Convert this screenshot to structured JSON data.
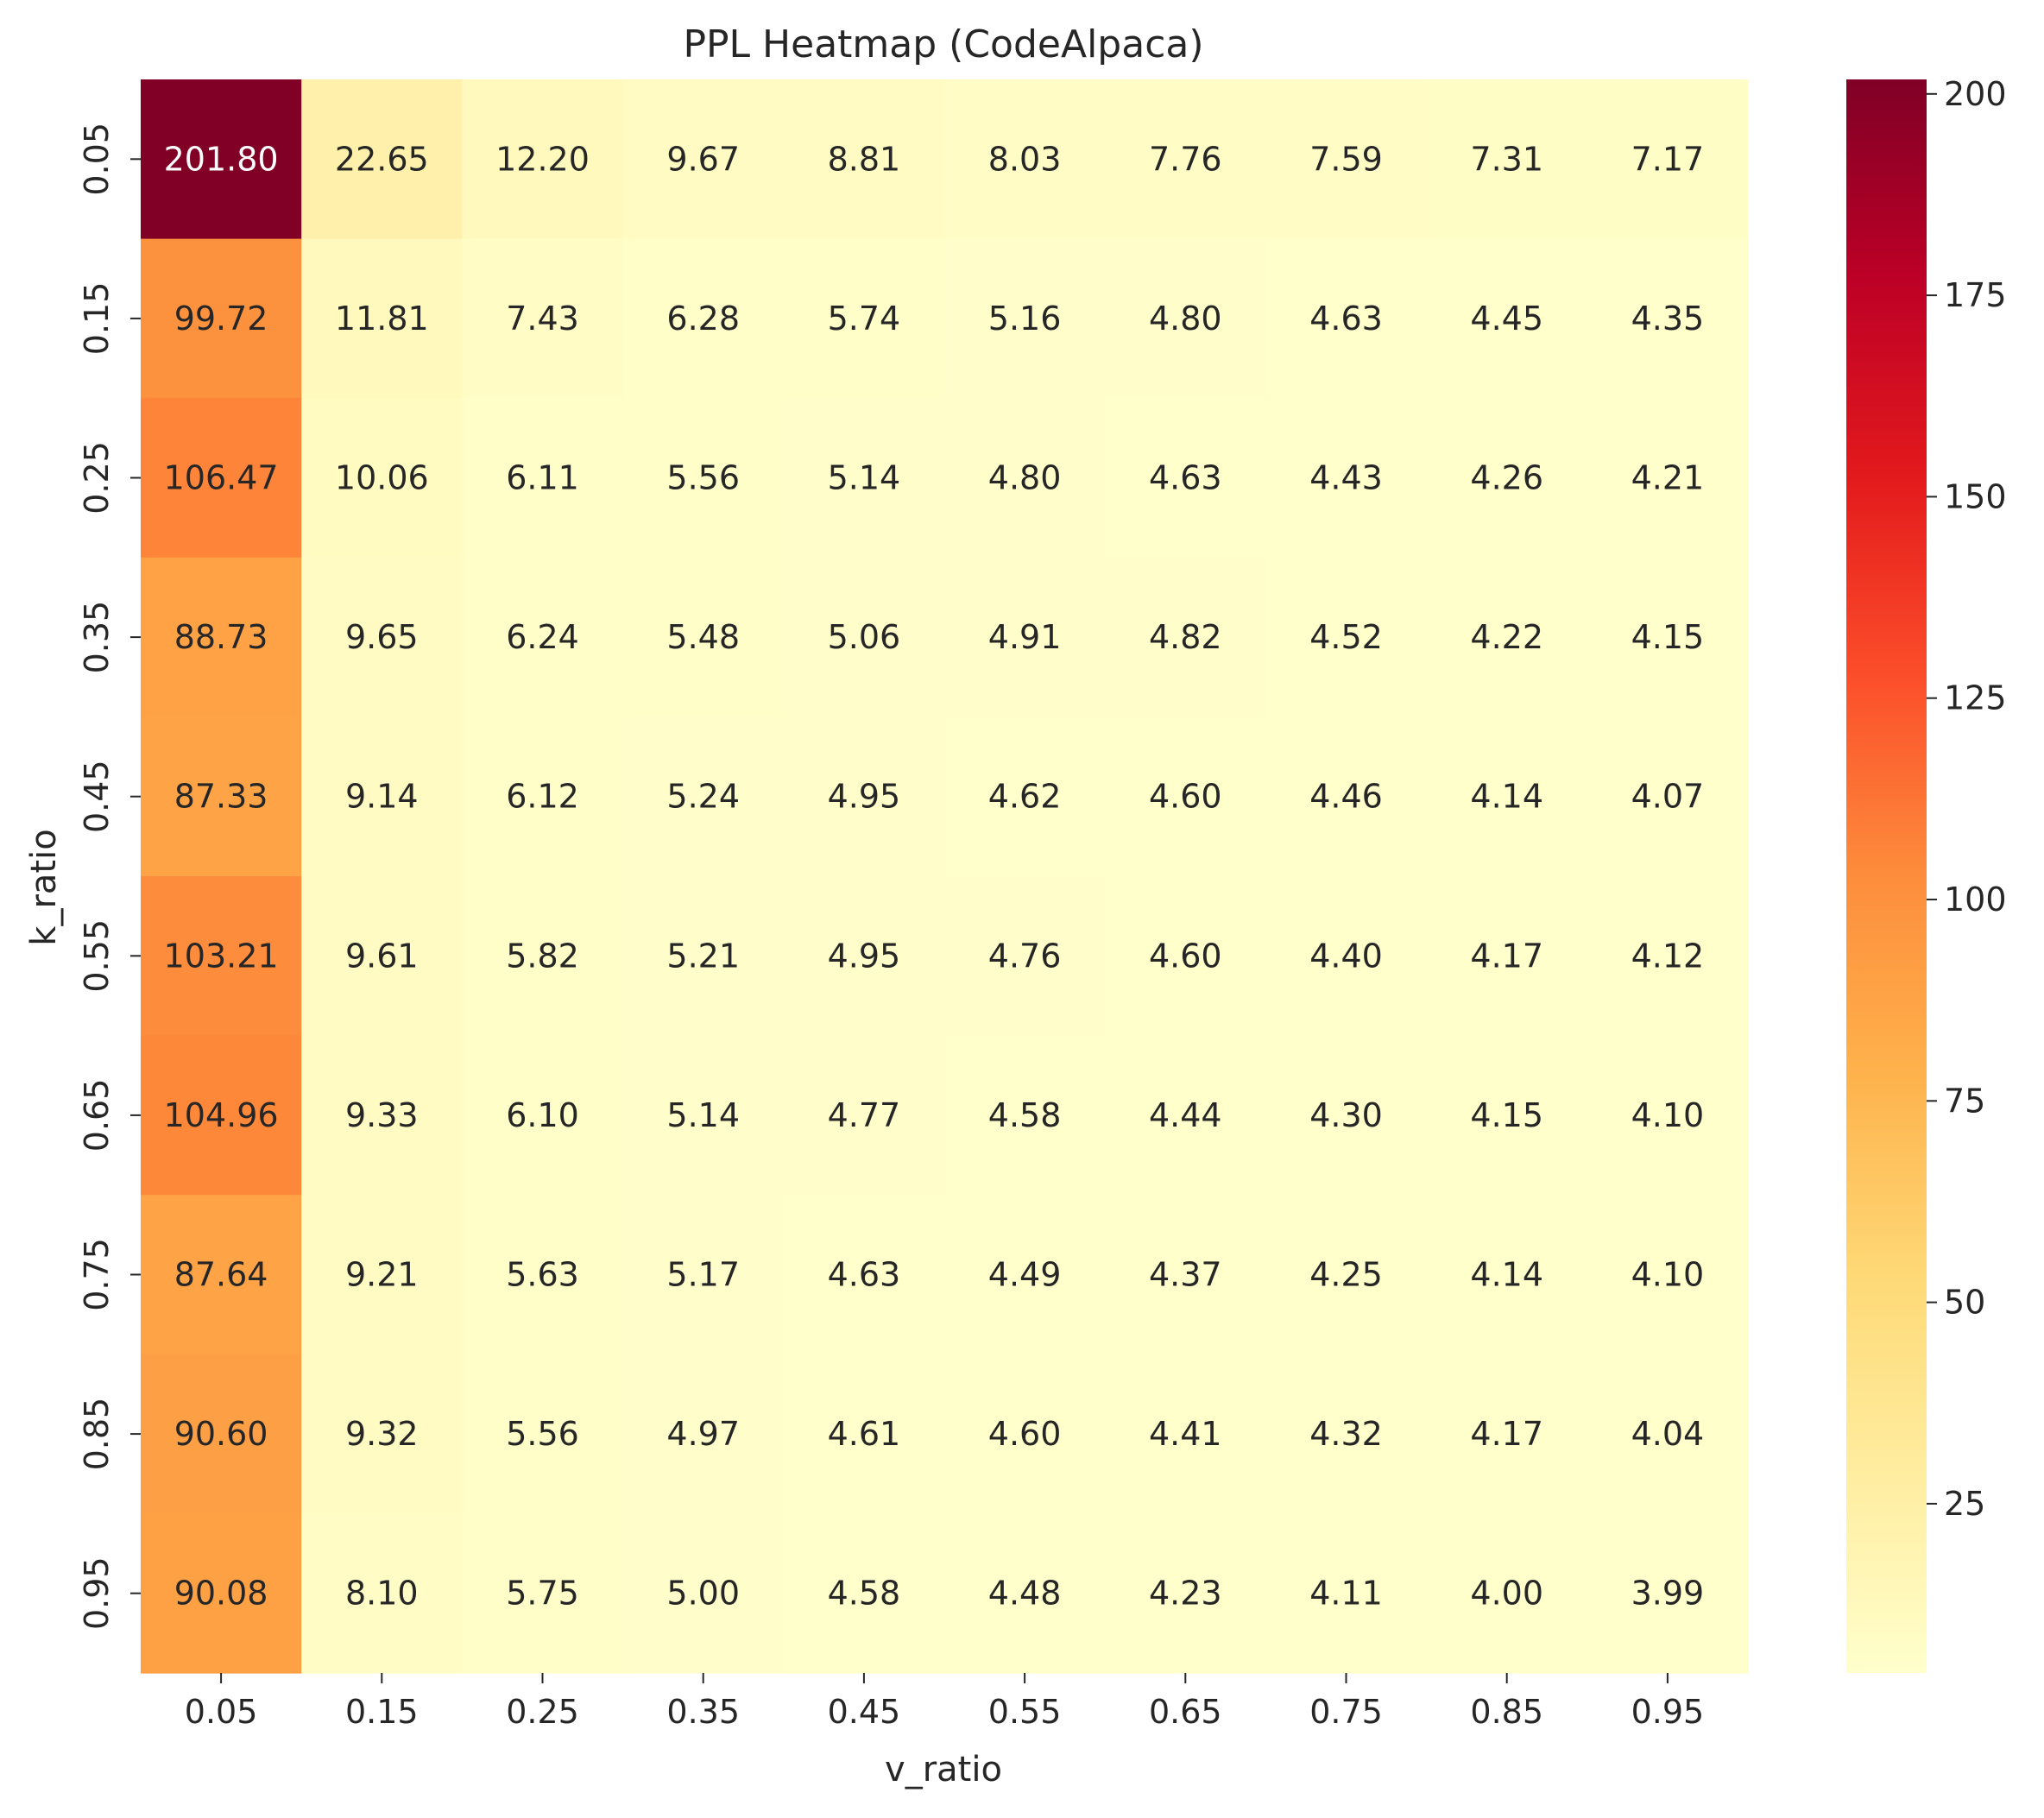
{
  "chart_data": {
    "type": "heatmap",
    "title": "PPL Heatmap (CodeAlpaca)",
    "xlabel": "v_ratio",
    "ylabel": "k_ratio",
    "x_categories": [
      "0.05",
      "0.15",
      "0.25",
      "0.35",
      "0.45",
      "0.55",
      "0.65",
      "0.75",
      "0.85",
      "0.95"
    ],
    "y_categories": [
      "0.05",
      "0.15",
      "0.25",
      "0.35",
      "0.45",
      "0.55",
      "0.65",
      "0.75",
      "0.85",
      "0.95"
    ],
    "values": [
      [
        "201.80",
        "22.65",
        "12.20",
        "9.67",
        "8.81",
        "8.03",
        "7.76",
        "7.59",
        "7.31",
        "7.17"
      ],
      [
        "99.72",
        "11.81",
        "7.43",
        "6.28",
        "5.74",
        "5.16",
        "4.80",
        "4.63",
        "4.45",
        "4.35"
      ],
      [
        "106.47",
        "10.06",
        "6.11",
        "5.56",
        "5.14",
        "4.80",
        "4.63",
        "4.43",
        "4.26",
        "4.21"
      ],
      [
        "88.73",
        "9.65",
        "6.24",
        "5.48",
        "5.06",
        "4.91",
        "4.82",
        "4.52",
        "4.22",
        "4.15"
      ],
      [
        "87.33",
        "9.14",
        "6.12",
        "5.24",
        "4.95",
        "4.62",
        "4.60",
        "4.46",
        "4.14",
        "4.07"
      ],
      [
        "103.21",
        "9.61",
        "5.82",
        "5.21",
        "4.95",
        "4.76",
        "4.60",
        "4.40",
        "4.17",
        "4.12"
      ],
      [
        "104.96",
        "9.33",
        "6.10",
        "5.14",
        "4.77",
        "4.58",
        "4.44",
        "4.30",
        "4.15",
        "4.10"
      ],
      [
        "87.64",
        "9.21",
        "5.63",
        "5.17",
        "4.63",
        "4.49",
        "4.37",
        "4.25",
        "4.14",
        "4.10"
      ],
      [
        "90.60",
        "9.32",
        "5.56",
        "4.97",
        "4.61",
        "4.60",
        "4.41",
        "4.32",
        "4.17",
        "4.04"
      ],
      [
        "90.08",
        "8.10",
        "5.75",
        "5.00",
        "4.58",
        "4.48",
        "4.23",
        "4.11",
        "4.00",
        "3.99"
      ]
    ],
    "colorscale": "YlOrRd",
    "color_range": [
      3.99,
      201.8
    ],
    "colorbar_ticks": [
      "25",
      "50",
      "75",
      "100",
      "125",
      "150",
      "175",
      "200"
    ],
    "annotation_text_color_dark": "#262626",
    "annotation_text_color_light": "#ffffff"
  }
}
